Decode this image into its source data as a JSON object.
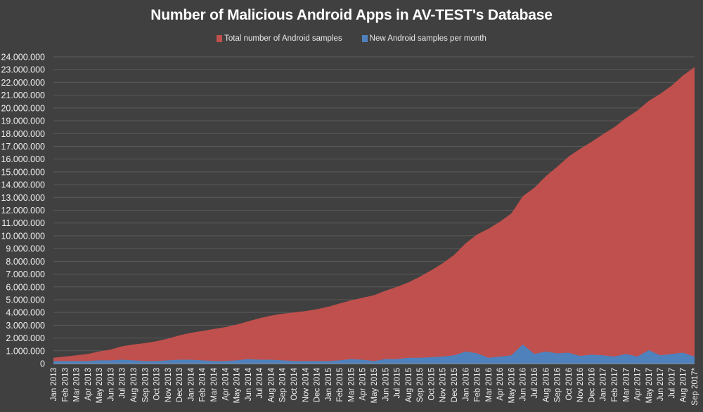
{
  "title": "Number of Malicious Android Apps in AV-TEST's Database",
  "legend": [
    {
      "label": "Total number of Android samples",
      "color": "#c0504d"
    },
    {
      "label": "New Android samples per month",
      "color": "#4f81bd"
    }
  ],
  "background": "#404040",
  "chart_data": {
    "type": "area",
    "title": "Number of Malicious Android Apps in AV-TEST's Database",
    "xlabel": "",
    "ylabel": "",
    "ylim": [
      0,
      24000000
    ],
    "yticks": [
      "0",
      "1.000.000",
      "2.000.000",
      "3.000.000",
      "4.000.000",
      "5.000.000",
      "6.000.000",
      "7.000.000",
      "8.000.000",
      "9.000.000",
      "10.000.000",
      "11.000.000",
      "12.000.000",
      "13.000.000",
      "14.000.000",
      "15.000.000",
      "16.000.000",
      "17.000.000",
      "18.000.000",
      "19.000.000",
      "20.000.000",
      "21.000.000",
      "22.000.000",
      "23.000.000",
      "24.000.000"
    ],
    "grid": true,
    "legend_position": "top",
    "categories": [
      "Jan 2013",
      "Feb 2013",
      "Mar 2013",
      "Apr 2013",
      "May 2013",
      "Jun 2013",
      "Jul 2013",
      "Aug 2013",
      "Sep 2013",
      "Oct 2013",
      "Nov 2013",
      "Dec 2013",
      "Jan 2014",
      "Feb 2014",
      "Mar 2014",
      "Apr 2014",
      "May 2014",
      "Jun 2014",
      "Jul 2014",
      "Aug 2014",
      "Sep 2014",
      "Oct 2014",
      "Nov 2014",
      "Dec 2014",
      "Jan 2015",
      "Feb 2015",
      "Mar 2015",
      "Apr 2015",
      "May 2015",
      "Jun 2015",
      "Jul 2015",
      "Aug 2015",
      "Sep 2015",
      "Oct 2015",
      "Nov 2015",
      "Dec 2015",
      "Jan 2016",
      "Feb 2016",
      "Mar 2016",
      "Apr 2016",
      "May 2016",
      "Jun 2016",
      "Jul 2016",
      "Aug 2016",
      "Sep 2016",
      "Oct 2016",
      "Nov 2016",
      "Dec 2016",
      "Jan 2017",
      "Feb 2017",
      "Mar 2017",
      "Apr 2017",
      "May 2017",
      "Jun 2017",
      "Jul 2017",
      "Aug 2017",
      "Sep 2017*"
    ],
    "series": [
      {
        "name": "Total number of Android samples",
        "color": "#c0504d",
        "values": [
          450000,
          550000,
          650000,
          750000,
          950000,
          1100000,
          1350000,
          1500000,
          1600000,
          1750000,
          1950000,
          2200000,
          2400000,
          2550000,
          2700000,
          2850000,
          3050000,
          3300000,
          3550000,
          3750000,
          3900000,
          4000000,
          4100000,
          4250000,
          4450000,
          4700000,
          4950000,
          5150000,
          5350000,
          5700000,
          6000000,
          6350000,
          6800000,
          7300000,
          7850000,
          8500000,
          9400000,
          10100000,
          10550000,
          11100000,
          11750000,
          13100000,
          13750000,
          14650000,
          15400000,
          16200000,
          16800000,
          17350000,
          17950000,
          18500000,
          19200000,
          19800000,
          20550000,
          21100000,
          21750000,
          22550000,
          23200000
        ]
      },
      {
        "name": "New Android samples per month",
        "color": "#4f81bd",
        "values": [
          200000,
          200000,
          200000,
          200000,
          250000,
          250000,
          300000,
          250000,
          200000,
          200000,
          250000,
          300000,
          300000,
          250000,
          200000,
          200000,
          250000,
          350000,
          300000,
          300000,
          250000,
          200000,
          200000,
          200000,
          200000,
          250000,
          350000,
          300000,
          200000,
          350000,
          350000,
          450000,
          450000,
          500000,
          550000,
          650000,
          950000,
          800000,
          450000,
          550000,
          650000,
          1500000,
          750000,
          950000,
          800000,
          850000,
          600000,
          700000,
          650000,
          550000,
          750000,
          550000,
          1050000,
          650000,
          750000,
          850000,
          550000
        ]
      }
    ]
  }
}
